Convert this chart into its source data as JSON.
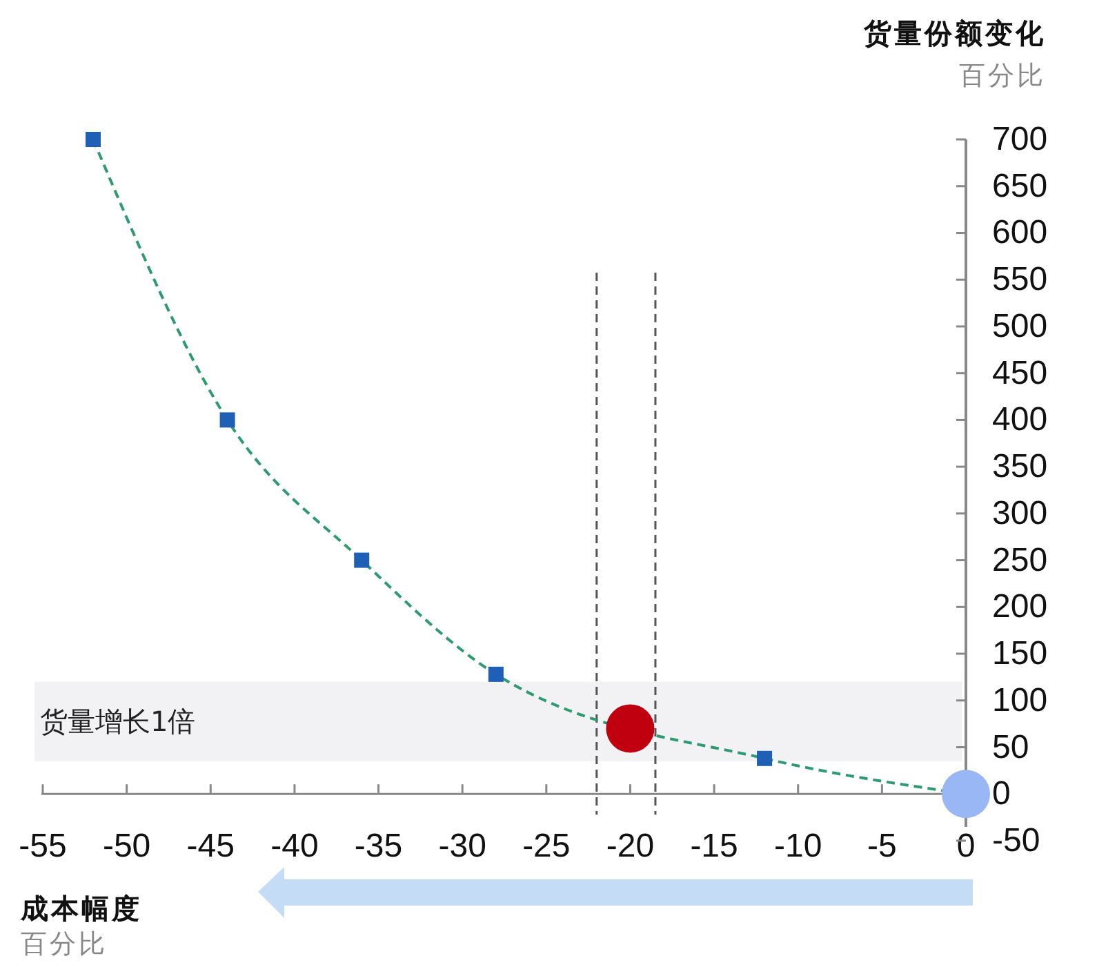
{
  "chart_data": {
    "type": "line",
    "xlabel": "成本幅度",
    "ylabel": "货量份额变化",
    "annotations": [
      "百分比",
      "百分比"
    ],
    "xlim": [
      -55,
      0
    ],
    "xticks": [
      -55,
      -50,
      -45,
      -40,
      -35,
      -30,
      -25,
      -20,
      -15,
      -10,
      -5,
      0
    ],
    "ylim": [
      -50,
      700
    ],
    "yticks": [
      -50,
      0,
      50,
      100,
      150,
      200,
      250,
      300,
      350,
      400,
      450,
      500,
      550,
      600,
      650,
      700
    ],
    "series": [
      {
        "x": [
          -52,
          -44,
          -36,
          -28,
          -12,
          0
        ],
        "values": [
          700,
          400,
          250,
          128,
          38,
          0
        ],
        "color": "#2e9a6f",
        "line_style": "dashed"
      },
      {
        "type": "scatter",
        "x": [
          -52,
          -44,
          -36,
          -28,
          -12
        ],
        "values": [
          700,
          400,
          250,
          128,
          38
        ],
        "color": "#1f5fb5",
        "marker": "square"
      },
      {
        "type": "scatter",
        "x": [
          -20
        ],
        "values": [
          70
        ],
        "color": "#c0000f",
        "marker": "circle"
      },
      {
        "type": "scatter",
        "x": [
          0
        ],
        "values": [
          0
        ],
        "color": "#9ab7f5",
        "marker": "circle"
      }
    ],
    "ref_lines": [
      {
        "axis": "x",
        "value": -22,
        "color": "#555555",
        "line_style": "dashed"
      },
      {
        "axis": "x",
        "value": -18.5,
        "color": "#555555",
        "line_style": "dashed"
      }
    ],
    "bands": [
      {
        "axis": "y",
        "from": 35,
        "to": 120,
        "label": "货量增长1倍",
        "color": "#f2f2f4"
      }
    ]
  }
}
